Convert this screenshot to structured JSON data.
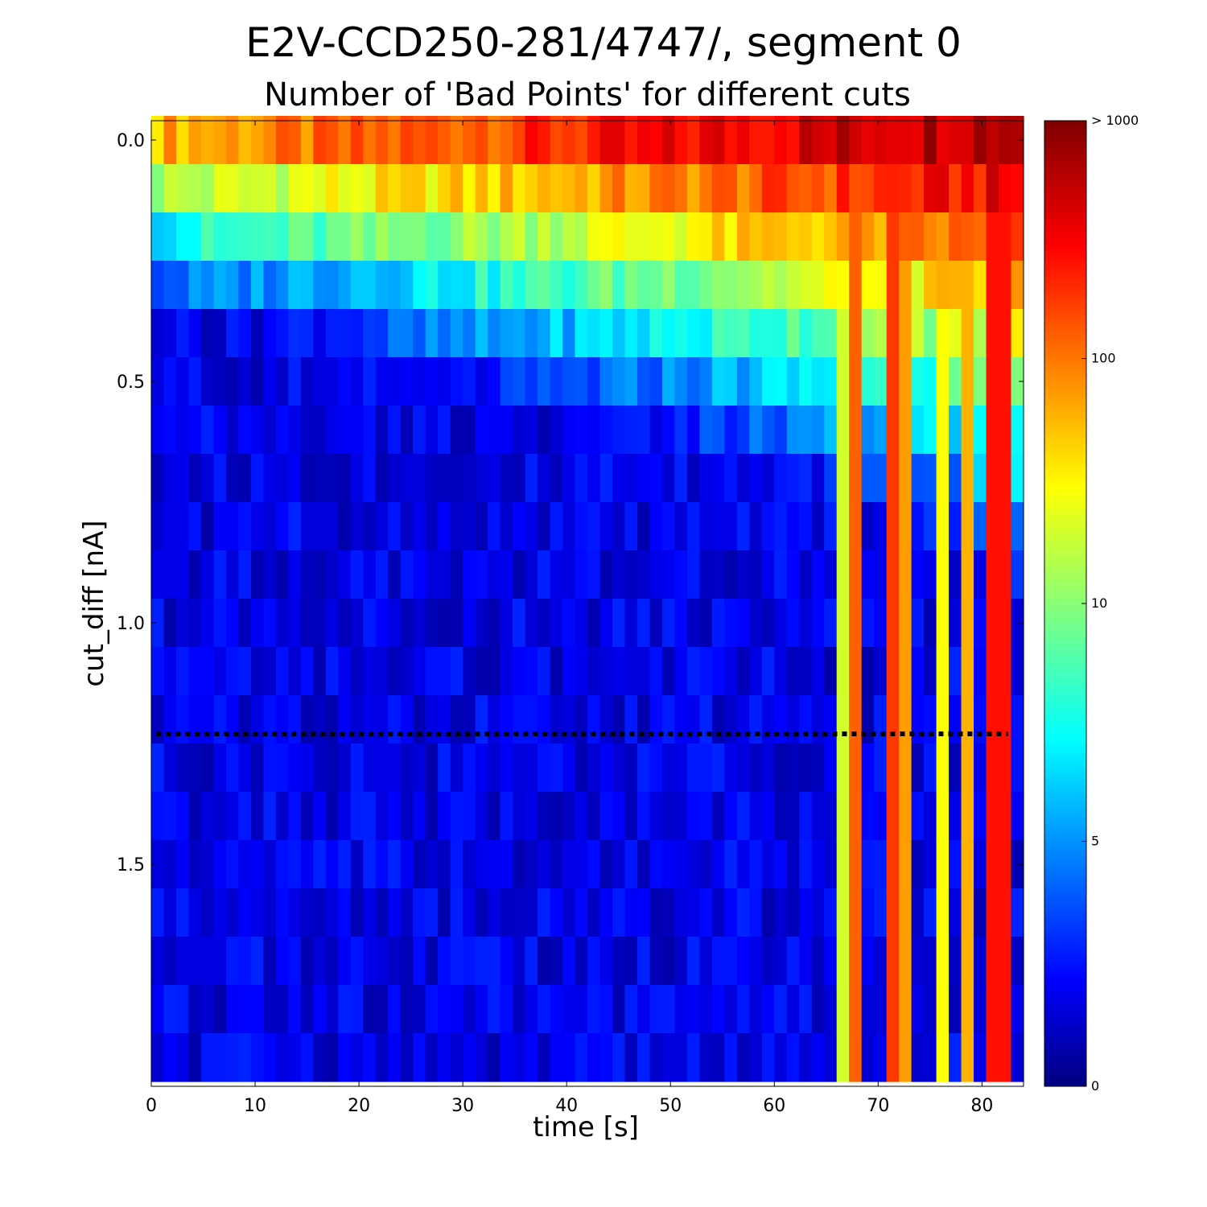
{
  "chart_data": {
    "type": "heatmap",
    "title": "E2V-CCD250-281/4747/, segment 0",
    "subtitle": "Number of 'Bad Points' for different cuts",
    "xlabel": "time [s]",
    "ylabel": "cut_diff [nA]",
    "xlim": [
      0,
      84
    ],
    "ylim": [
      1.96,
      -0.04
    ],
    "x_ticks": [
      "0",
      "10",
      "20",
      "30",
      "40",
      "50",
      "60",
      "70",
      "80"
    ],
    "y_ticks": [
      "0.0",
      "0.5",
      "1.0",
      "1.5"
    ],
    "x_tick_values": [
      0,
      10,
      20,
      30,
      40,
      50,
      60,
      70,
      80
    ],
    "y_tick_values": [
      0.0,
      0.5,
      1.0,
      1.5
    ],
    "colorbar": {
      "colormap": "jet",
      "scale": "log",
      "ticks": [
        "0",
        "5",
        "10",
        "100",
        "> 1000"
      ],
      "tick_values": [
        0,
        5,
        10,
        100,
        1000
      ]
    },
    "threshold_line": {
      "value": 1.23,
      "style": "dotted",
      "color": "#000000"
    },
    "grid": false,
    "cut_levels": [
      0.0,
      0.1,
      0.2,
      0.3,
      0.4,
      0.5,
      0.6,
      0.7,
      0.8,
      0.9,
      1.0,
      1.1,
      1.2,
      1.3,
      1.4,
      1.5,
      1.6,
      1.7,
      1.8,
      1.9
    ],
    "time_bins": 70,
    "time_range": [
      0,
      84
    ],
    "description": "Bad-point counts are highest at small cut_diff and late times; counts fall with increasing cut_diff. Isolated late-time columns (~67, 69, 72, 74, 77, 79, 82 s) stay high across all cuts."
  }
}
